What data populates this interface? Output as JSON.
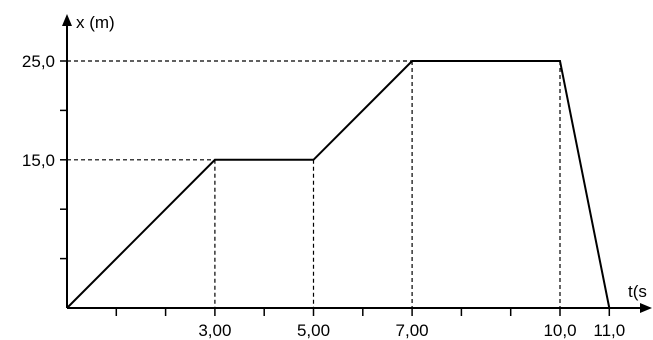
{
  "chart_data": {
    "type": "line",
    "title": "",
    "ylabel": "x (m)",
    "xlabel": "t(s",
    "xlim": [
      0,
      11.6
    ],
    "ylim": [
      0,
      29
    ],
    "x_ticks": [
      1,
      2,
      3,
      4,
      5,
      6,
      7,
      8,
      9,
      10,
      11
    ],
    "y_ticks": [
      5,
      10,
      15,
      20,
      25
    ],
    "x_tick_labels": [
      {
        "value": 3,
        "label": "3,00"
      },
      {
        "value": 5,
        "label": "5,00"
      },
      {
        "value": 7,
        "label": "7,00"
      },
      {
        "value": 10,
        "label": "10,0"
      },
      {
        "value": 11,
        "label": "11,0"
      }
    ],
    "y_tick_labels": [
      {
        "value": 15,
        "label": "15,0"
      },
      {
        "value": 25,
        "label": "25,0"
      }
    ],
    "x": [
      0,
      3,
      5,
      7,
      10,
      11
    ],
    "series": [
      {
        "values": [
          0,
          15,
          15,
          25,
          25,
          0
        ]
      }
    ],
    "guides": [
      {
        "x": 3,
        "y": 15
      },
      {
        "x": 5,
        "y": 15
      },
      {
        "x": 7,
        "y": 25
      },
      {
        "x": 10,
        "y": 25
      }
    ],
    "grid": false,
    "line_color": "#000000"
  }
}
